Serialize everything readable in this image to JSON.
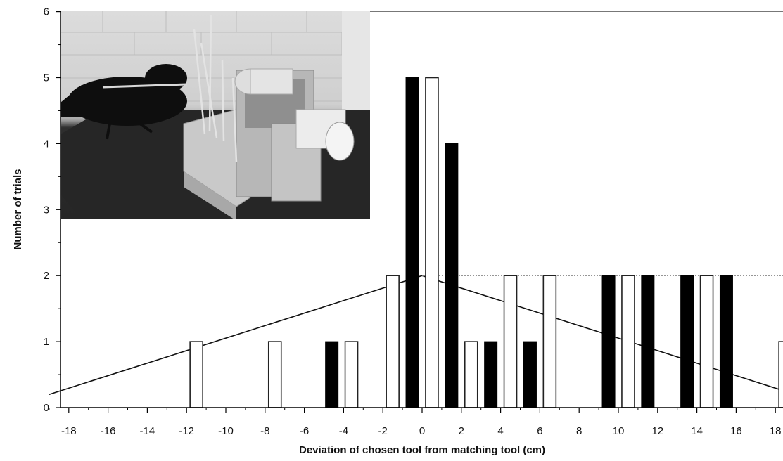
{
  "chart_data": {
    "type": "bar",
    "xlabel": "Deviation of chosen tool from matching tool (cm)",
    "ylabel": "Number of trials",
    "xlim": [
      -19.2,
      19.2
    ],
    "ylim": [
      0,
      6
    ],
    "x_ticks": [
      -18,
      -16,
      -14,
      -12,
      -10,
      -8,
      -6,
      -4,
      -2,
      0,
      2,
      4,
      6,
      8,
      10,
      12,
      14,
      16,
      18
    ],
    "y_ticks": [
      0,
      1,
      2,
      3,
      4,
      5,
      6
    ],
    "grid": false,
    "legend": "none",
    "series": [
      {
        "style": "filled",
        "color": "#000000",
        "points": [
          {
            "x": -4.6,
            "y": 1
          },
          {
            "x": -0.5,
            "y": 5
          },
          {
            "x": 1.5,
            "y": 4
          },
          {
            "x": 3.5,
            "y": 1
          },
          {
            "x": 5.5,
            "y": 1
          },
          {
            "x": 9.5,
            "y": 2
          },
          {
            "x": 11.5,
            "y": 2
          },
          {
            "x": 13.5,
            "y": 2
          },
          {
            "x": 15.5,
            "y": 2
          }
        ]
      },
      {
        "style": "open",
        "color": "#ffffff",
        "points": [
          {
            "x": -11.5,
            "y": 1
          },
          {
            "x": -7.5,
            "y": 1
          },
          {
            "x": -3.6,
            "y": 1
          },
          {
            "x": -1.5,
            "y": 2
          },
          {
            "x": 0.5,
            "y": 5
          },
          {
            "x": 2.5,
            "y": 1
          },
          {
            "x": 4.5,
            "y": 2
          },
          {
            "x": 6.5,
            "y": 2
          },
          {
            "x": 10.5,
            "y": 2
          },
          {
            "x": 14.5,
            "y": 2
          },
          {
            "x": 18.5,
            "y": 1
          }
        ]
      }
    ],
    "reference_lines": [
      {
        "style": "solid",
        "points": [
          [
            -19,
            0.2
          ],
          [
            0,
            2
          ],
          [
            19,
            0.2
          ]
        ]
      },
      {
        "style": "dotted",
        "points": [
          [
            0,
            2
          ],
          [
            19.2,
            2
          ]
        ]
      }
    ],
    "inset": {
      "kind": "photo",
      "subject": "crow at tool apparatus"
    }
  }
}
